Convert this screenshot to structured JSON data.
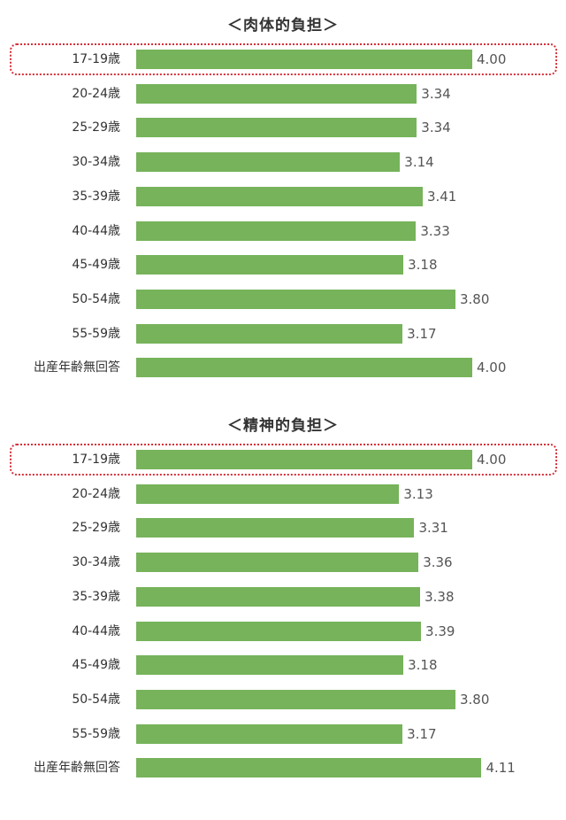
{
  "colors": {
    "bar": "#76b35a",
    "highlight": "#d6303a"
  },
  "chart_data": [
    {
      "type": "bar",
      "orientation": "horizontal",
      "title": "＜肉体的負担＞",
      "categories": [
        "17-19歳",
        "20-24歳",
        "25-29歳",
        "30-34歳",
        "35-39歳",
        "40-44歳",
        "45-49歳",
        "50-54歳",
        "55-59歳",
        "出産年齢無回答"
      ],
      "values": [
        4.0,
        3.34,
        3.34,
        3.14,
        3.41,
        3.33,
        3.18,
        3.8,
        3.17,
        4.0
      ],
      "value_labels": [
        "4.00",
        "3.34",
        "3.34",
        "3.14",
        "3.41",
        "3.33",
        "3.18",
        "3.80",
        "3.17",
        "4.00"
      ],
      "highlighted_category": "17-19歳"
    },
    {
      "type": "bar",
      "orientation": "horizontal",
      "title": "＜精神的負担＞",
      "categories": [
        "17-19歳",
        "20-24歳",
        "25-29歳",
        "30-34歳",
        "35-39歳",
        "40-44歳",
        "45-49歳",
        "50-54歳",
        "55-59歳",
        "出産年齢無回答"
      ],
      "values": [
        4.0,
        3.13,
        3.31,
        3.36,
        3.38,
        3.39,
        3.18,
        3.8,
        3.17,
        4.11
      ],
      "value_labels": [
        "4.00",
        "3.13",
        "3.31",
        "3.36",
        "3.38",
        "3.39",
        "3.18",
        "3.80",
        "3.17",
        "4.11"
      ],
      "highlighted_category": "17-19歳"
    }
  ]
}
